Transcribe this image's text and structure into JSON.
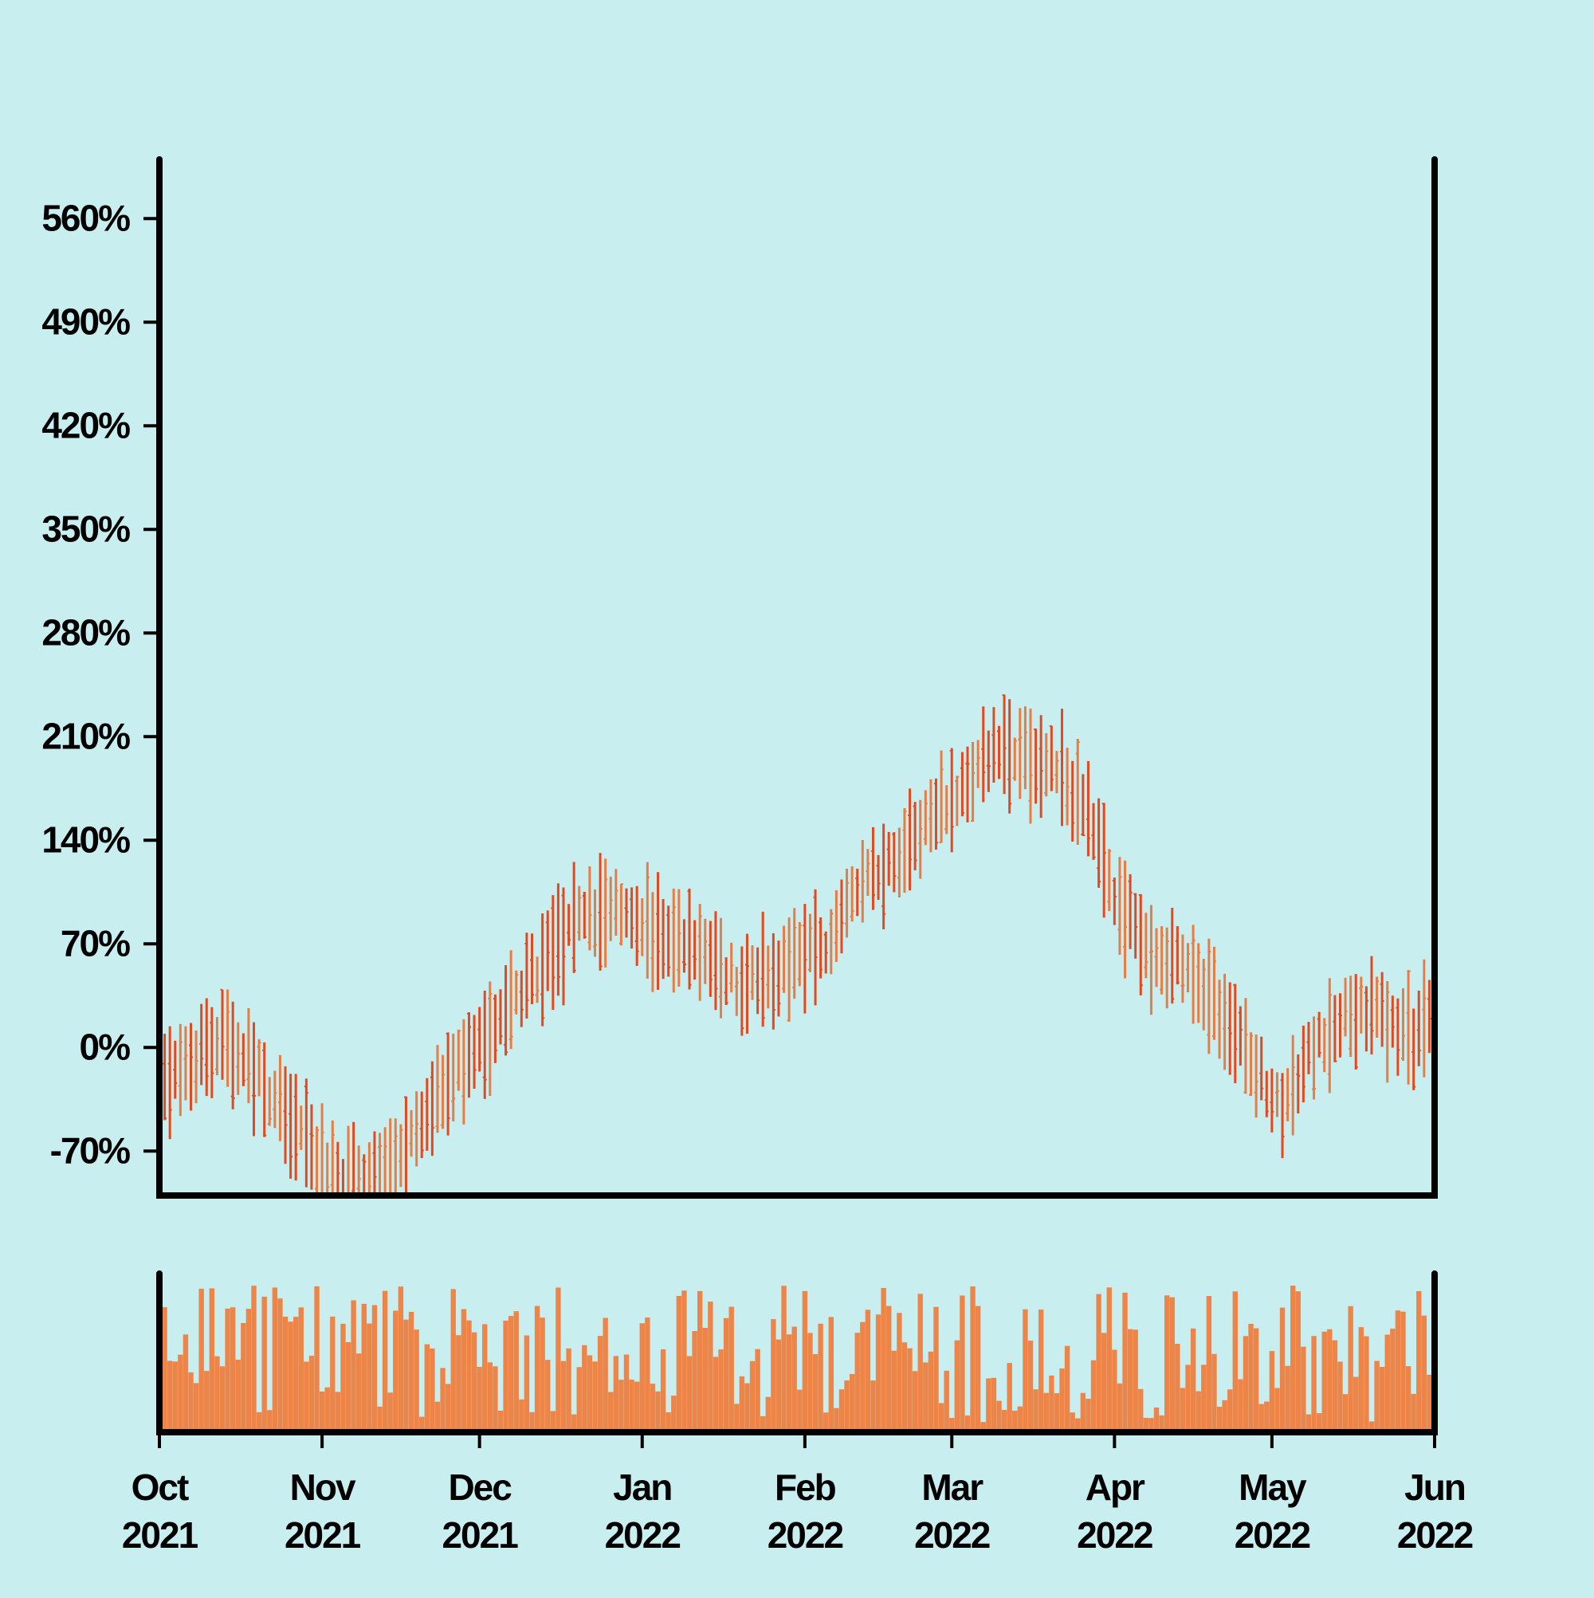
{
  "chart_data": {
    "type": "ohlc",
    "title": "",
    "xlabel": "",
    "ylabel": "",
    "x_range": [
      "2021-10-01",
      "2022-06-01"
    ],
    "ylim": [
      -100,
      600
    ],
    "y_ticks": [
      {
        "value": -70,
        "label": "-70%"
      },
      {
        "value": 0,
        "label": "0%"
      },
      {
        "value": 70,
        "label": "70%"
      },
      {
        "value": 140,
        "label": "140%"
      },
      {
        "value": 210,
        "label": "210%"
      },
      {
        "value": 280,
        "label": "280%"
      },
      {
        "value": 350,
        "label": "350%"
      },
      {
        "value": 420,
        "label": "420%"
      },
      {
        "value": 490,
        "label": "490%"
      },
      {
        "value": 560,
        "label": "560%"
      }
    ],
    "x_ticks": [
      {
        "date": "2021-10-01",
        "month": "Oct",
        "year": "2021"
      },
      {
        "date": "2021-11-01",
        "month": "Nov",
        "year": "2021"
      },
      {
        "date": "2021-12-01",
        "month": "Dec",
        "year": "2021"
      },
      {
        "date": "2022-01-01",
        "month": "Jan",
        "year": "2022"
      },
      {
        "date": "2022-02-01",
        "month": "Feb",
        "year": "2022"
      },
      {
        "date": "2022-03-01",
        "month": "Mar",
        "year": "2022"
      },
      {
        "date": "2022-04-01",
        "month": "Apr",
        "year": "2022"
      },
      {
        "date": "2022-05-01",
        "month": "May",
        "year": "2022"
      },
      {
        "date": "2022-06-01",
        "month": "Jun",
        "year": "2022"
      }
    ],
    "trend_anchors": [
      {
        "date": "2021-10-01",
        "value": -25
      },
      {
        "date": "2021-10-06",
        "value": -10
      },
      {
        "date": "2021-10-14",
        "value": 5
      },
      {
        "date": "2021-10-20",
        "value": -20
      },
      {
        "date": "2021-10-27",
        "value": -55
      },
      {
        "date": "2021-11-03",
        "value": -88
      },
      {
        "date": "2021-11-10",
        "value": -95
      },
      {
        "date": "2021-11-15",
        "value": -80
      },
      {
        "date": "2021-11-22",
        "value": -35
      },
      {
        "date": "2021-12-01",
        "value": 0
      },
      {
        "date": "2021-12-07",
        "value": 30
      },
      {
        "date": "2021-12-14",
        "value": 60
      },
      {
        "date": "2021-12-20",
        "value": 85
      },
      {
        "date": "2021-12-28",
        "value": 95
      },
      {
        "date": "2022-01-04",
        "value": 75
      },
      {
        "date": "2022-01-12",
        "value": 70
      },
      {
        "date": "2022-01-20",
        "value": 40
      },
      {
        "date": "2022-01-28",
        "value": 55
      },
      {
        "date": "2022-02-05",
        "value": 70
      },
      {
        "date": "2022-02-12",
        "value": 110
      },
      {
        "date": "2022-02-19",
        "value": 125
      },
      {
        "date": "2022-02-26",
        "value": 160
      },
      {
        "date": "2022-03-04",
        "value": 180
      },
      {
        "date": "2022-03-10",
        "value": 205
      },
      {
        "date": "2022-03-16",
        "value": 195
      },
      {
        "date": "2022-03-22",
        "value": 185
      },
      {
        "date": "2022-03-27",
        "value": 155
      },
      {
        "date": "2022-04-02",
        "value": 95
      },
      {
        "date": "2022-04-08",
        "value": 65
      },
      {
        "date": "2022-04-15",
        "value": 55
      },
      {
        "date": "2022-04-20",
        "value": 30
      },
      {
        "date": "2022-04-27",
        "value": -10
      },
      {
        "date": "2022-05-03",
        "value": -40
      },
      {
        "date": "2022-05-08",
        "value": -5
      },
      {
        "date": "2022-05-14",
        "value": 20
      },
      {
        "date": "2022-05-20",
        "value": 25
      },
      {
        "date": "2022-05-28",
        "value": 5
      },
      {
        "date": "2022-06-03",
        "value": 30
      },
      {
        "date": "2022-06-08",
        "value": 5
      },
      {
        "date": "2022-06-12",
        "value": 20
      }
    ],
    "colors": {
      "up": "#e87c45",
      "down": "#e2491f",
      "volume": "#ed8549",
      "axis": "#000000",
      "background": "#c9eef0"
    },
    "volume_panel": true,
    "grid": false
  }
}
